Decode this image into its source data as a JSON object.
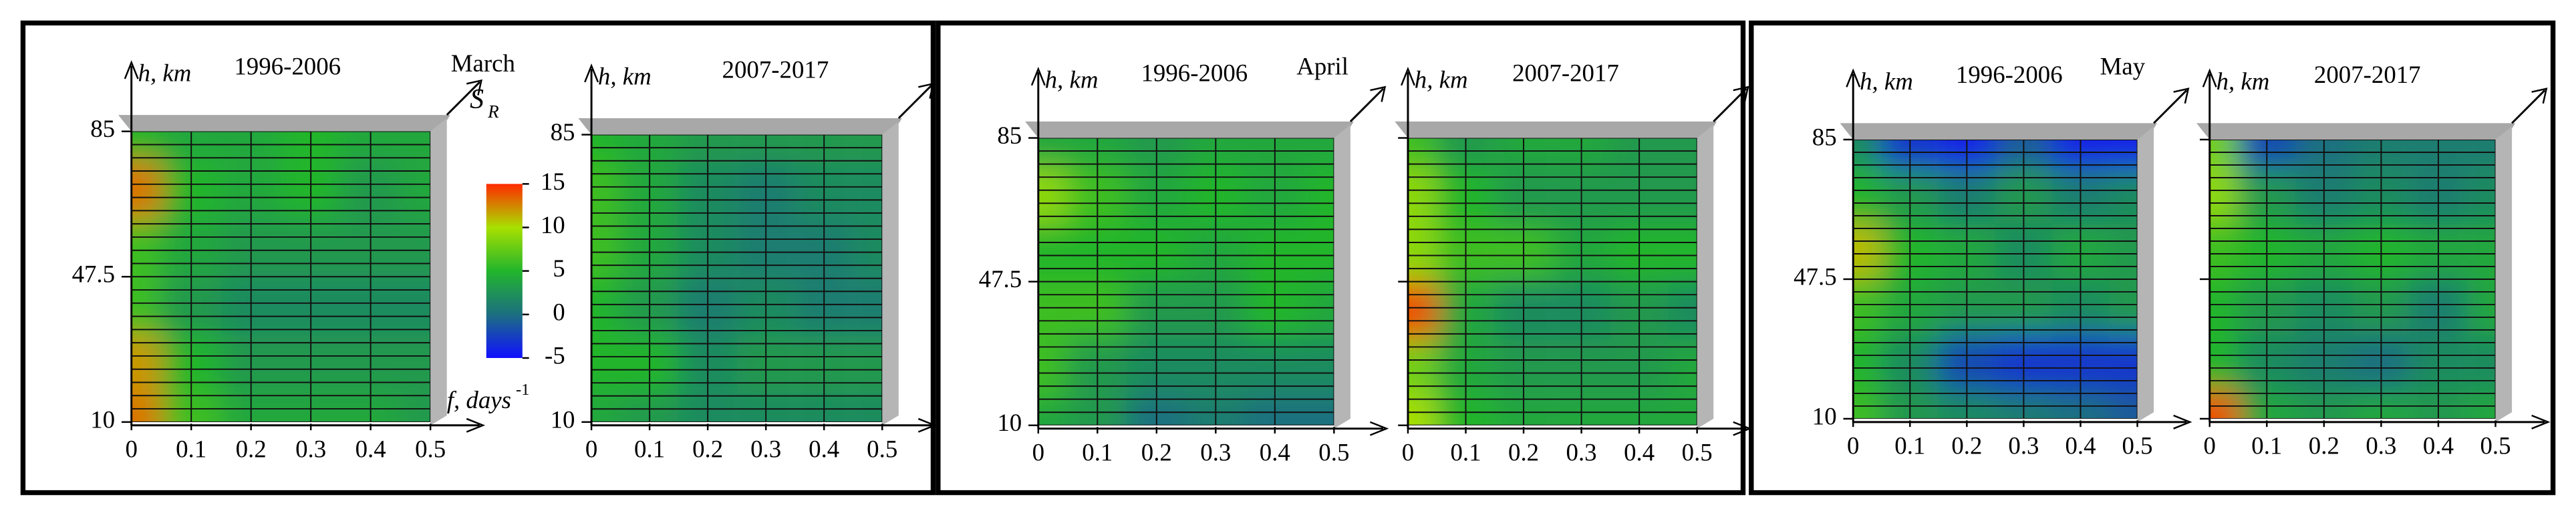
{
  "chart_data": [
    {
      "type": "surface",
      "title": "1996-2006",
      "label": "March",
      "ylabel": "h, km",
      "xlabel": "f, days",
      "xlabel_sup": "-1",
      "colorbar": {
        "label": "S",
        "label_sub": "R",
        "ticks": [
          -5,
          0,
          5,
          10,
          15
        ],
        "colors": [
          "#1010ff",
          "#1c6f80",
          "#22b52c",
          "#a8e000",
          "#ff2a00"
        ]
      },
      "xlim": [
        0,
        0.5
      ],
      "ylim": [
        10,
        85
      ],
      "xticks": [
        0,
        0.1,
        0.2,
        0.3,
        0.4,
        0.5
      ],
      "yticks": [
        10,
        47.5,
        85
      ],
      "ytick_labels": true,
      "x": [
        0,
        0.1,
        0.2,
        0.3,
        0.4,
        0.5
      ],
      "y": [
        10,
        25,
        40,
        55,
        70,
        85
      ],
      "z": [
        [
          13,
          6,
          4,
          4,
          4,
          3
        ],
        [
          12,
          5,
          3,
          3,
          3,
          3
        ],
        [
          6,
          3,
          2,
          2,
          2,
          2
        ],
        [
          6,
          4,
          3,
          3,
          3,
          3
        ],
        [
          13,
          5,
          4,
          5,
          3,
          4
        ],
        [
          5,
          4,
          4,
          5,
          4,
          4
        ]
      ]
    },
    {
      "type": "surface",
      "title": "2007-2017",
      "ylabel": "h, km",
      "xlim": [
        0,
        0.5
      ],
      "ylim": [
        10,
        85
      ],
      "xticks": [
        0,
        0.1,
        0.2,
        0.3,
        0.4,
        0.5
      ],
      "yticks": [
        10,
        85
      ],
      "ytick_labels": true,
      "x": [
        0,
        0.1,
        0.2,
        0.3,
        0.4,
        0.5
      ],
      "y": [
        10,
        25,
        40,
        55,
        70,
        85
      ],
      "z": [
        [
          4,
          3,
          2,
          2,
          2,
          2
        ],
        [
          5,
          5,
          2,
          3,
          3,
          3
        ],
        [
          5,
          3,
          1,
          2,
          1,
          1
        ],
        [
          6,
          4,
          2,
          1,
          1,
          2
        ],
        [
          6,
          4,
          2,
          1,
          2,
          2
        ],
        [
          5,
          4,
          3,
          3,
          3,
          3
        ]
      ]
    },
    {
      "type": "surface",
      "title": "1996-2006",
      "label": "April",
      "ylabel": "h, km",
      "xlim": [
        0,
        0.5
      ],
      "ylim": [
        10,
        85
      ],
      "xticks": [
        0,
        0.1,
        0.2,
        0.3,
        0.4,
        0.5
      ],
      "yticks": [
        10,
        47.5,
        85
      ],
      "ytick_labels": true,
      "x": [
        0,
        0.1,
        0.2,
        0.3,
        0.4,
        0.5
      ],
      "y": [
        10,
        25,
        40,
        55,
        70,
        85
      ],
      "z": [
        [
          4,
          3,
          0,
          1,
          0,
          0
        ],
        [
          6,
          3,
          2,
          2,
          2,
          2
        ],
        [
          6,
          6,
          3,
          3,
          5,
          4
        ],
        [
          5,
          5,
          5,
          4,
          5,
          5
        ],
        [
          9,
          6,
          4,
          5,
          4,
          5
        ],
        [
          4,
          4,
          3,
          4,
          4,
          4
        ]
      ]
    },
    {
      "type": "surface",
      "title": "2007-2017",
      "ylabel": "h, km",
      "xlim": [
        0,
        0.5
      ],
      "ylim": [
        10,
        85
      ],
      "xticks": [
        0,
        0.1,
        0.2,
        0.3,
        0.4,
        0.5
      ],
      "yticks": [
        10,
        47.5,
        85
      ],
      "ytick_labels": false,
      "x": [
        0,
        0.1,
        0.2,
        0.3,
        0.4,
        0.5
      ],
      "y": [
        10,
        25,
        40,
        55,
        70,
        85
      ],
      "z": [
        [
          10,
          5,
          4,
          4,
          4,
          4
        ],
        [
          8,
          4,
          3,
          3,
          3,
          4
        ],
        [
          14,
          4,
          2,
          2,
          3,
          2
        ],
        [
          9,
          6,
          6,
          4,
          5,
          5
        ],
        [
          9,
          5,
          3,
          3,
          3,
          3
        ],
        [
          6,
          3,
          4,
          4,
          3,
          3
        ]
      ]
    },
    {
      "type": "surface",
      "title": "1996-2006",
      "label": "May",
      "ylabel": "h, km",
      "xlim": [
        0,
        0.5
      ],
      "ylim": [
        10,
        85
      ],
      "xticks": [
        0,
        0.1,
        0.2,
        0.3,
        0.4,
        0.5
      ],
      "yticks": [
        10,
        47.5,
        85
      ],
      "ytick_labels": true,
      "x": [
        0,
        0.1,
        0.2,
        0.3,
        0.4,
        0.5
      ],
      "y": [
        10,
        25,
        40,
        55,
        70,
        85
      ],
      "z": [
        [
          6,
          3,
          2,
          1,
          0,
          -1
        ],
        [
          5,
          2,
          -2,
          -3,
          -3,
          -3
        ],
        [
          6,
          4,
          3,
          3,
          2,
          3
        ],
        [
          11,
          5,
          4,
          2,
          4,
          3
        ],
        [
          5,
          3,
          1,
          3,
          1,
          2
        ],
        [
          2,
          -3,
          -4,
          -1,
          -4,
          -4
        ]
      ]
    },
    {
      "type": "surface",
      "title": "2007-2017",
      "ylabel": "h, km",
      "xlim": [
        0,
        0.5
      ],
      "ylim": [
        10,
        85
      ],
      "xticks": [
        0,
        0.1,
        0.2,
        0.3,
        0.4,
        0.5
      ],
      "yticks": [
        10,
        47.5,
        85
      ],
      "ytick_labels": false,
      "x": [
        0,
        0.1,
        0.2,
        0.3,
        0.4,
        0.5
      ],
      "y": [
        10,
        25,
        40,
        55,
        70,
        85
      ],
      "z": [
        [
          14,
          4,
          3,
          4,
          3,
          4
        ],
        [
          5,
          2,
          1,
          0,
          2,
          2
        ],
        [
          5,
          3,
          2,
          3,
          1,
          4
        ],
        [
          6,
          5,
          4,
          5,
          4,
          4
        ],
        [
          9,
          3,
          1,
          2,
          1,
          2
        ],
        [
          8,
          -2,
          0,
          1,
          1,
          1
        ]
      ]
    }
  ]
}
